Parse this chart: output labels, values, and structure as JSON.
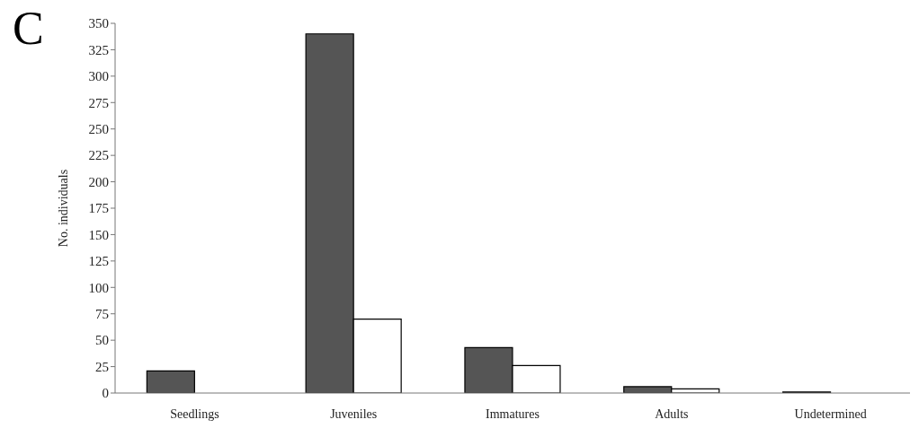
{
  "chart_data": {
    "type": "bar",
    "title": "C",
    "ylabel": "No. individuals",
    "categories": [
      "Seedlings",
      "Juveniles",
      "Immatures",
      "Adults",
      "Undetermined"
    ],
    "series": [
      {
        "color": "#555555",
        "values": [
          21,
          340,
          43,
          6,
          1
        ]
      },
      {
        "color": "#ffffff",
        "values": [
          0,
          70,
          26,
          4,
          0
        ]
      }
    ],
    "ylim": [
      0,
      350
    ],
    "yticks": [
      0,
      25,
      50,
      75,
      100,
      125,
      150,
      175,
      200,
      225,
      250,
      275,
      300,
      325,
      350
    ],
    "grid": false,
    "legend": false
  }
}
